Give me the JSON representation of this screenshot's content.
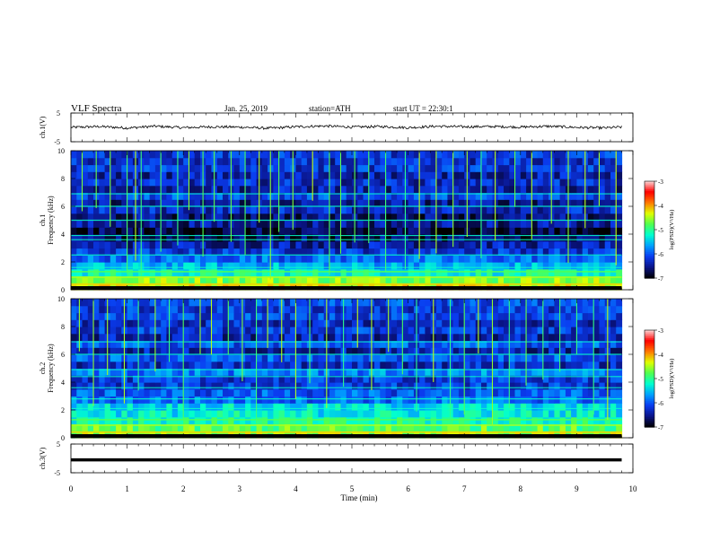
{
  "header": {
    "title": "VLF Spectra",
    "date": "Jan. 25, 2019",
    "station": "station=ATH",
    "start": "start UT =  22:30:1"
  },
  "colors": {
    "colormap": [
      "#000000",
      "#0a1488",
      "#0a3cf0",
      "#00a0ff",
      "#00ffd0",
      "#50ff50",
      "#e0ff00",
      "#ff7800",
      "#ff0000",
      "#ffd8d8"
    ],
    "waveform": "#000000",
    "frame": "#000000"
  },
  "chart_data": [
    {
      "type": "line",
      "name": "ch1-waveform",
      "ylabel": "ch.1(V)",
      "ylim": [
        -5,
        5
      ],
      "yticks": [
        "5",
        "-5"
      ],
      "x": [
        0,
        0.5,
        1,
        1.5,
        2,
        2.5,
        3,
        3.5,
        4,
        4.5,
        5,
        5.5,
        6,
        6.5,
        7,
        7.5,
        8,
        8.5,
        9,
        9.5,
        9.8
      ],
      "y": [
        0,
        0.3,
        -0.2,
        0.4,
        -0.1,
        0.2,
        0.1,
        -0.3,
        0.2,
        0.5,
        0.1,
        0.3,
        -0.1,
        0.4,
        0.2,
        0.3,
        0.1,
        0.4,
        0,
        -0.2,
        0.1
      ]
    },
    {
      "type": "heatmap",
      "name": "ch1-spectrogram",
      "ylabel": "ch.1",
      "ylabel2": "Frequency (kHz)",
      "ylim": [
        0,
        10
      ],
      "yticks": [
        "0",
        "2",
        "4",
        "6",
        "8",
        "10"
      ],
      "xlim": [
        0,
        10
      ],
      "data_xmax": 9.8,
      "freq_rows_khz": [
        0.25,
        0.75,
        1.25,
        1.75,
        2.25,
        2.75,
        3.25,
        3.75,
        4.25,
        4.75,
        5.25,
        5.75,
        6.25,
        6.75,
        7.25,
        7.75,
        8.25,
        8.75,
        9.25,
        9.75
      ],
      "log_psd": [
        -4.3,
        -4.6,
        -5.2,
        -5.6,
        -5.9,
        -6.2,
        -6.4,
        -6.7,
        -6.8,
        -6.5,
        -6.6,
        -6.3,
        -6.5,
        -6.1,
        -6.4,
        -6.3,
        -6.4,
        -6.2,
        -6.3,
        -6.2
      ],
      "spectral_lines_khz": [
        6.9,
        6.0,
        5.0,
        3.9,
        3.6,
        2.5,
        1.6
      ],
      "sferic_times_min": [
        0.2,
        0.45,
        0.7,
        1.0,
        1.15,
        1.25,
        1.6,
        1.9,
        2.1,
        2.35,
        2.55,
        2.85,
        3.1,
        3.35,
        3.55,
        3.7,
        3.95,
        4.3,
        4.6,
        4.8,
        5.05,
        5.3,
        5.6,
        5.95,
        6.2,
        6.5,
        6.8,
        7.05,
        7.3,
        7.55,
        7.9,
        8.2,
        8.55,
        8.85,
        9.15,
        9.4,
        9.7
      ],
      "colorbar": {
        "label": "log(PSD)(V²/Hz)",
        "ticks": [
          "-3",
          "-4",
          "-5",
          "-6",
          "-7"
        ],
        "range": [
          -7,
          -3
        ]
      }
    },
    {
      "type": "heatmap",
      "name": "ch2-spectrogram",
      "ylabel": "ch.2",
      "ylabel2": "Frequency (kHz)",
      "ylim": [
        0,
        10
      ],
      "yticks": [
        "0",
        "2",
        "4",
        "6",
        "8",
        "10"
      ],
      "xlim": [
        0,
        10
      ],
      "data_xmax": 9.8,
      "freq_rows_khz": [
        0.25,
        0.75,
        1.25,
        1.75,
        2.25,
        2.75,
        3.25,
        3.75,
        4.25,
        4.75,
        5.25,
        5.75,
        6.25,
        6.75,
        7.25,
        7.75,
        8.25,
        8.75,
        9.25,
        9.75
      ],
      "log_psd": [
        -4.5,
        -4.8,
        -5.1,
        -5.3,
        -5.4,
        -5.9,
        -6.0,
        -6.2,
        -6.2,
        -5.8,
        -6.3,
        -6.0,
        -6.4,
        -6.0,
        -6.4,
        -6.2,
        -6.3,
        -6.1,
        -6.2,
        -6.1
      ],
      "spectral_lines_khz": [
        6.9,
        6.0,
        4.9,
        4.4,
        3.6,
        2.8,
        2.1
      ],
      "sferic_times_min": [
        0.15,
        0.4,
        0.65,
        0.95,
        1.2,
        1.5,
        1.75,
        2.0,
        2.3,
        2.5,
        2.8,
        3.05,
        3.3,
        3.5,
        3.75,
        4.0,
        4.25,
        4.55,
        4.85,
        5.1,
        5.35,
        5.65,
        5.9,
        6.15,
        6.45,
        6.75,
        7.0,
        7.25,
        7.5,
        7.8,
        8.1,
        8.4,
        8.7,
        9.0,
        9.3,
        9.55
      ],
      "colorbar": {
        "label": "log(PSD)(V²/Hz)",
        "ticks": [
          "-3",
          "-4",
          "-5",
          "-6",
          "-7"
        ],
        "range": [
          -7,
          -3
        ]
      }
    },
    {
      "type": "line",
      "name": "ch3-waveform",
      "ylabel": "ch.3(V)",
      "ylim": [
        -5,
        5
      ],
      "yticks": [
        "5",
        "-5"
      ],
      "x": [
        0,
        9.8
      ],
      "y": [
        -0.5,
        -0.5
      ]
    }
  ],
  "xaxis": {
    "label": "Time (min)",
    "ticks": [
      "0",
      "1",
      "2",
      "3",
      "4",
      "5",
      "6",
      "7",
      "8",
      "9",
      "10"
    ],
    "range": [
      0,
      10
    ]
  }
}
